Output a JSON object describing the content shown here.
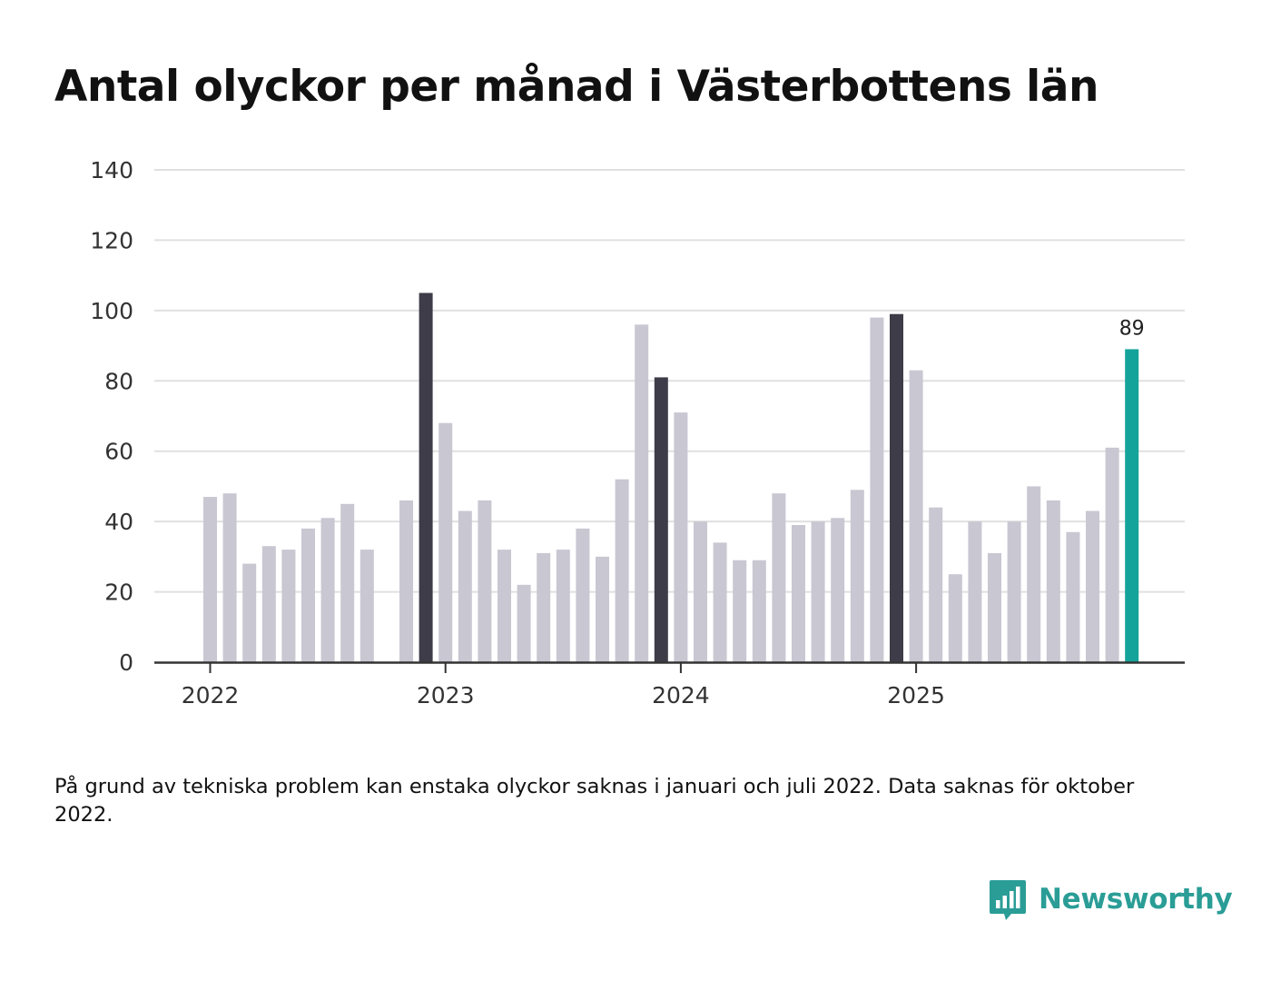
{
  "title": "Antal olyckor per månad i Västerbottens län",
  "note": "På grund av tekniska problem kan enstaka olyckor saknas i januari och juli 2022. Data saknas för oktober 2022.",
  "brand": "Newsworthy",
  "colors": {
    "bar": "#c8c7d2",
    "highlight": "#3d3c48",
    "latest": "#14a39a",
    "grid": "#e0e0e0",
    "axis": "#333333",
    "brand": "#2a9d96"
  },
  "chart_data": {
    "type": "bar",
    "title": "Antal olyckor per månad i Västerbottens län",
    "xlabel": "",
    "ylabel": "",
    "ylim": [
      0,
      140
    ],
    "yticks": [
      "0",
      "20",
      "40",
      "60",
      "80",
      "100",
      "120",
      "140"
    ],
    "xticks": [
      "2022",
      "2023",
      "2024",
      "2025"
    ],
    "grid": true,
    "start": "2022-01",
    "values": [
      47,
      48,
      28,
      33,
      32,
      38,
      41,
      45,
      32,
      null,
      46,
      105,
      68,
      43,
      46,
      32,
      22,
      31,
      32,
      38,
      30,
      52,
      96,
      81,
      71,
      40,
      34,
      29,
      29,
      48,
      39,
      40,
      41,
      49,
      98,
      99,
      83,
      44,
      25,
      40,
      31,
      40,
      50,
      46,
      37,
      43,
      61,
      89
    ],
    "highlighted_months": [
      "2022-12",
      "2023-12",
      "2024-12"
    ],
    "latest_month": "2025-12",
    "data_labels": [
      "89"
    ]
  }
}
